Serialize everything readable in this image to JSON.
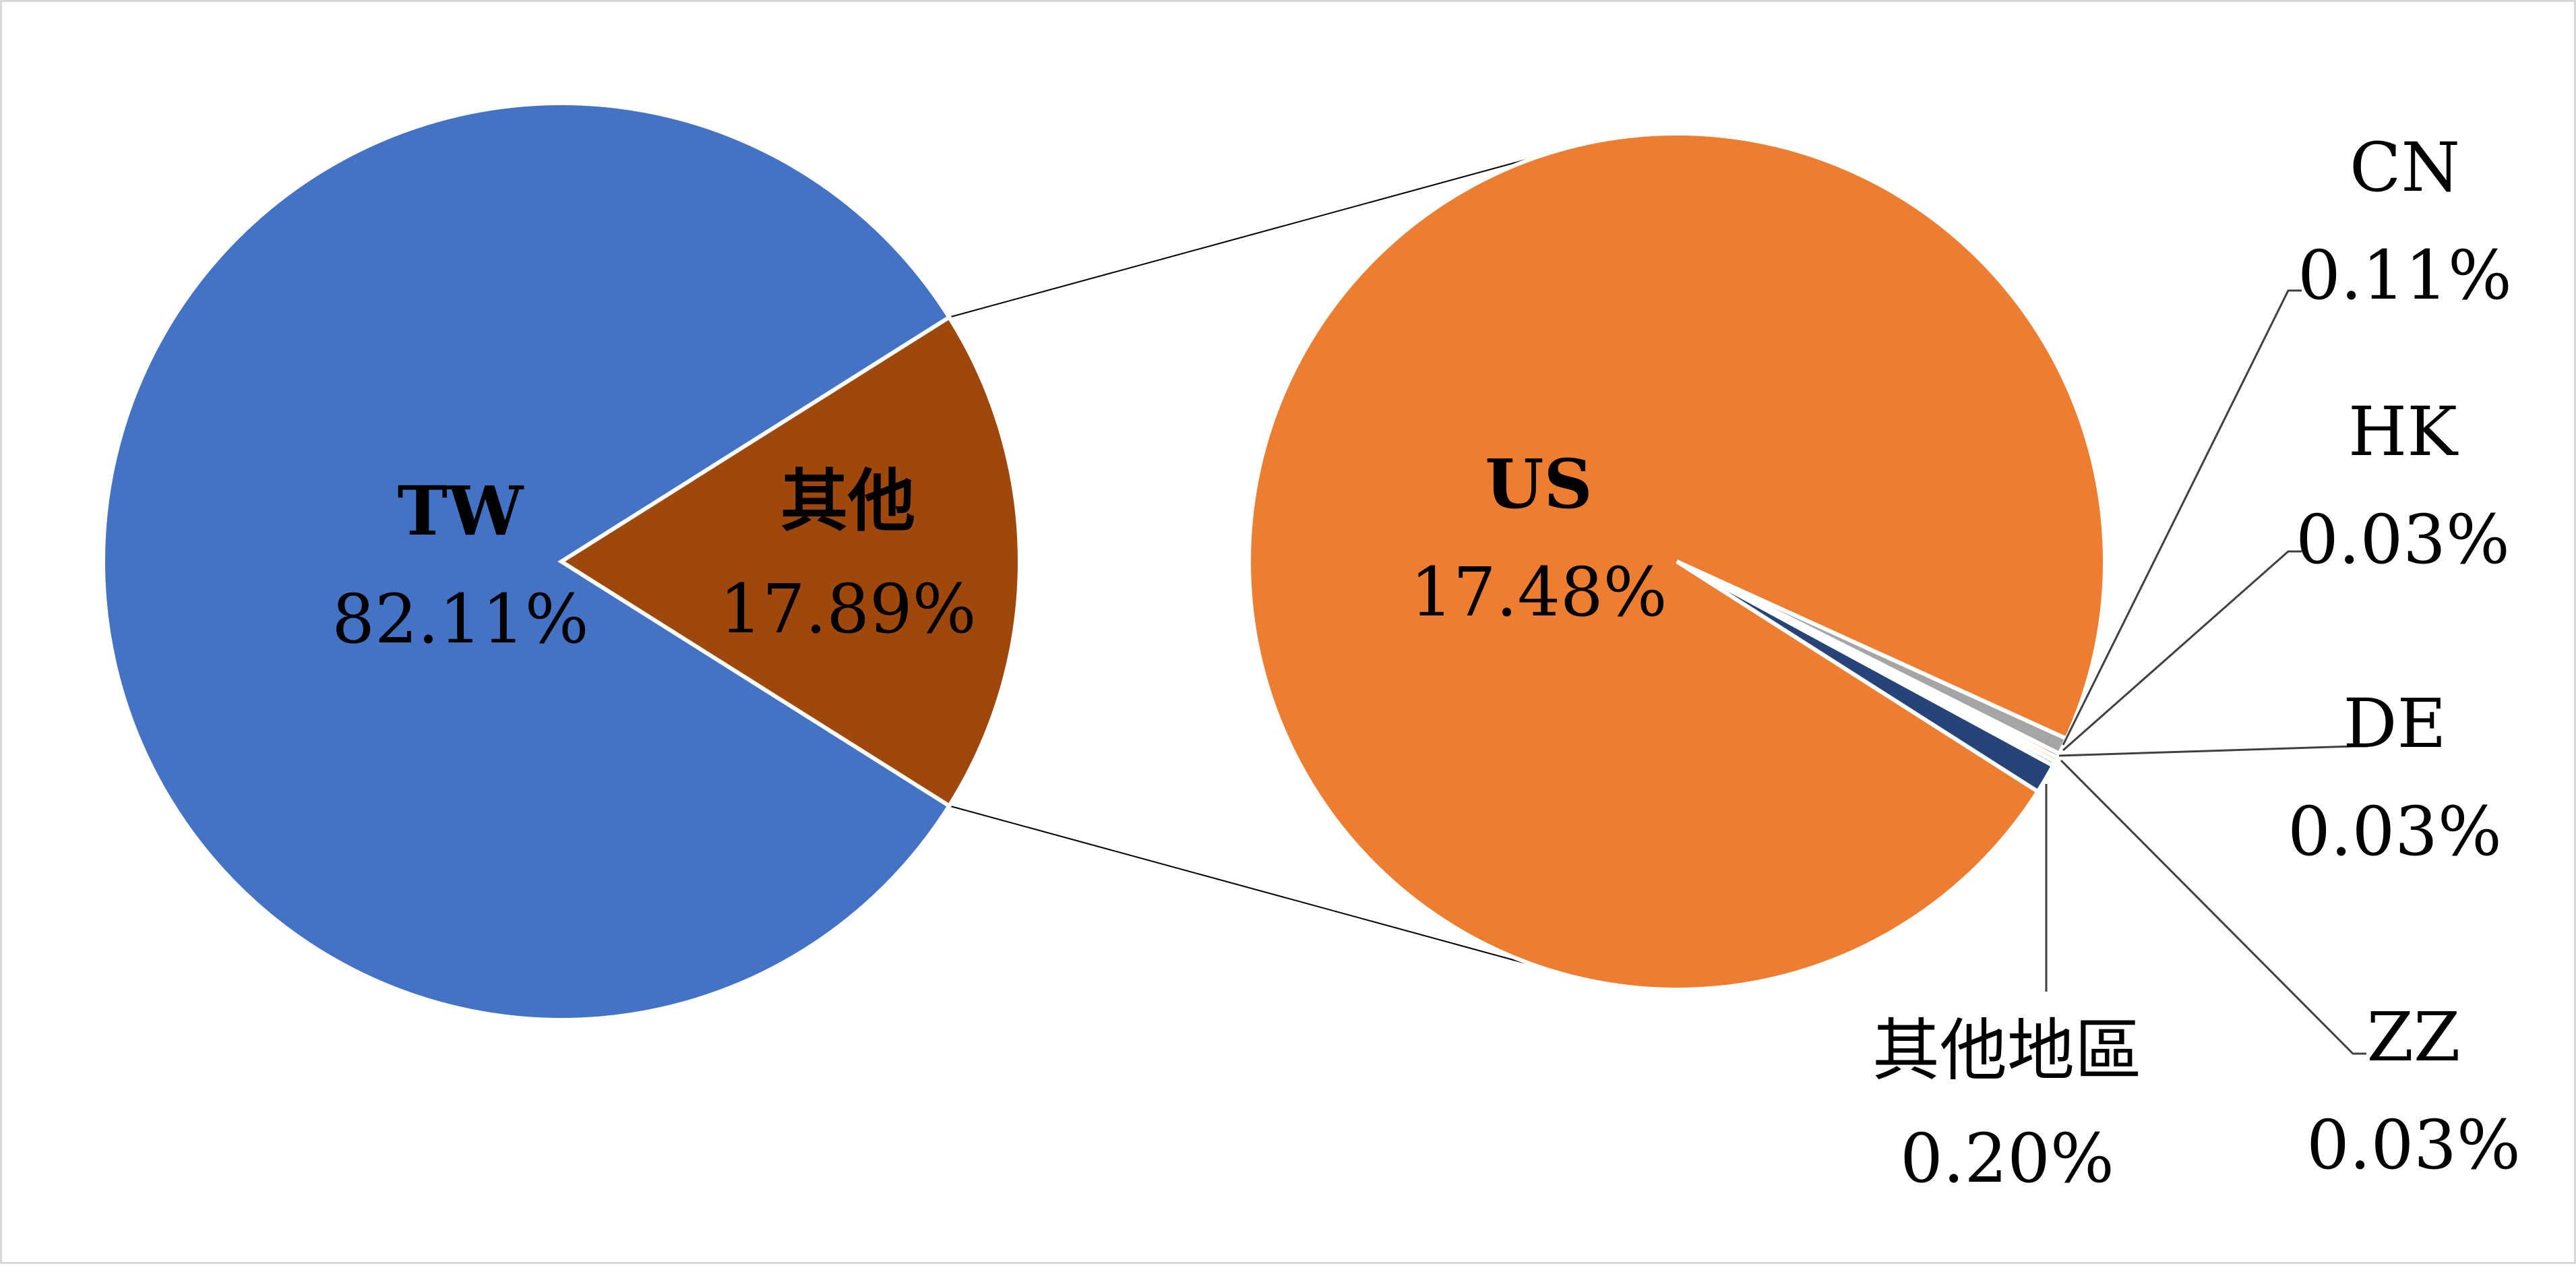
{
  "chart_data": {
    "type": "pie",
    "subtype": "pie-of-pie",
    "main_pie": {
      "slices": [
        {
          "label": "TW",
          "value_label": "82.11%",
          "value": 82.11,
          "color": "#4472C4"
        },
        {
          "label": "其他",
          "value_label": "17.89%",
          "value": 17.89,
          "color": "#9E480E"
        }
      ]
    },
    "secondary_pie": {
      "slices": [
        {
          "label": "US",
          "value_label": "17.48%",
          "value": 17.48,
          "color": "#ED7D31"
        },
        {
          "label": "其他地區",
          "value_label": "0.20%",
          "value": 0.2,
          "color": "#264478"
        },
        {
          "label": "ZZ",
          "value_label": "0.03%",
          "value": 0.03,
          "color": "#5B9BD5"
        },
        {
          "label": "DE",
          "value_label": "0.03%",
          "value": 0.03,
          "color": "#FFC000"
        },
        {
          "label": "HK",
          "value_label": "0.03%",
          "value": 0.03,
          "color": "#7F7F7F"
        },
        {
          "label": "CN",
          "value_label": "0.11%",
          "value": 0.11,
          "color": "#A5A5A5"
        }
      ]
    },
    "legend": "none",
    "border_color": "#D9D9D9"
  }
}
